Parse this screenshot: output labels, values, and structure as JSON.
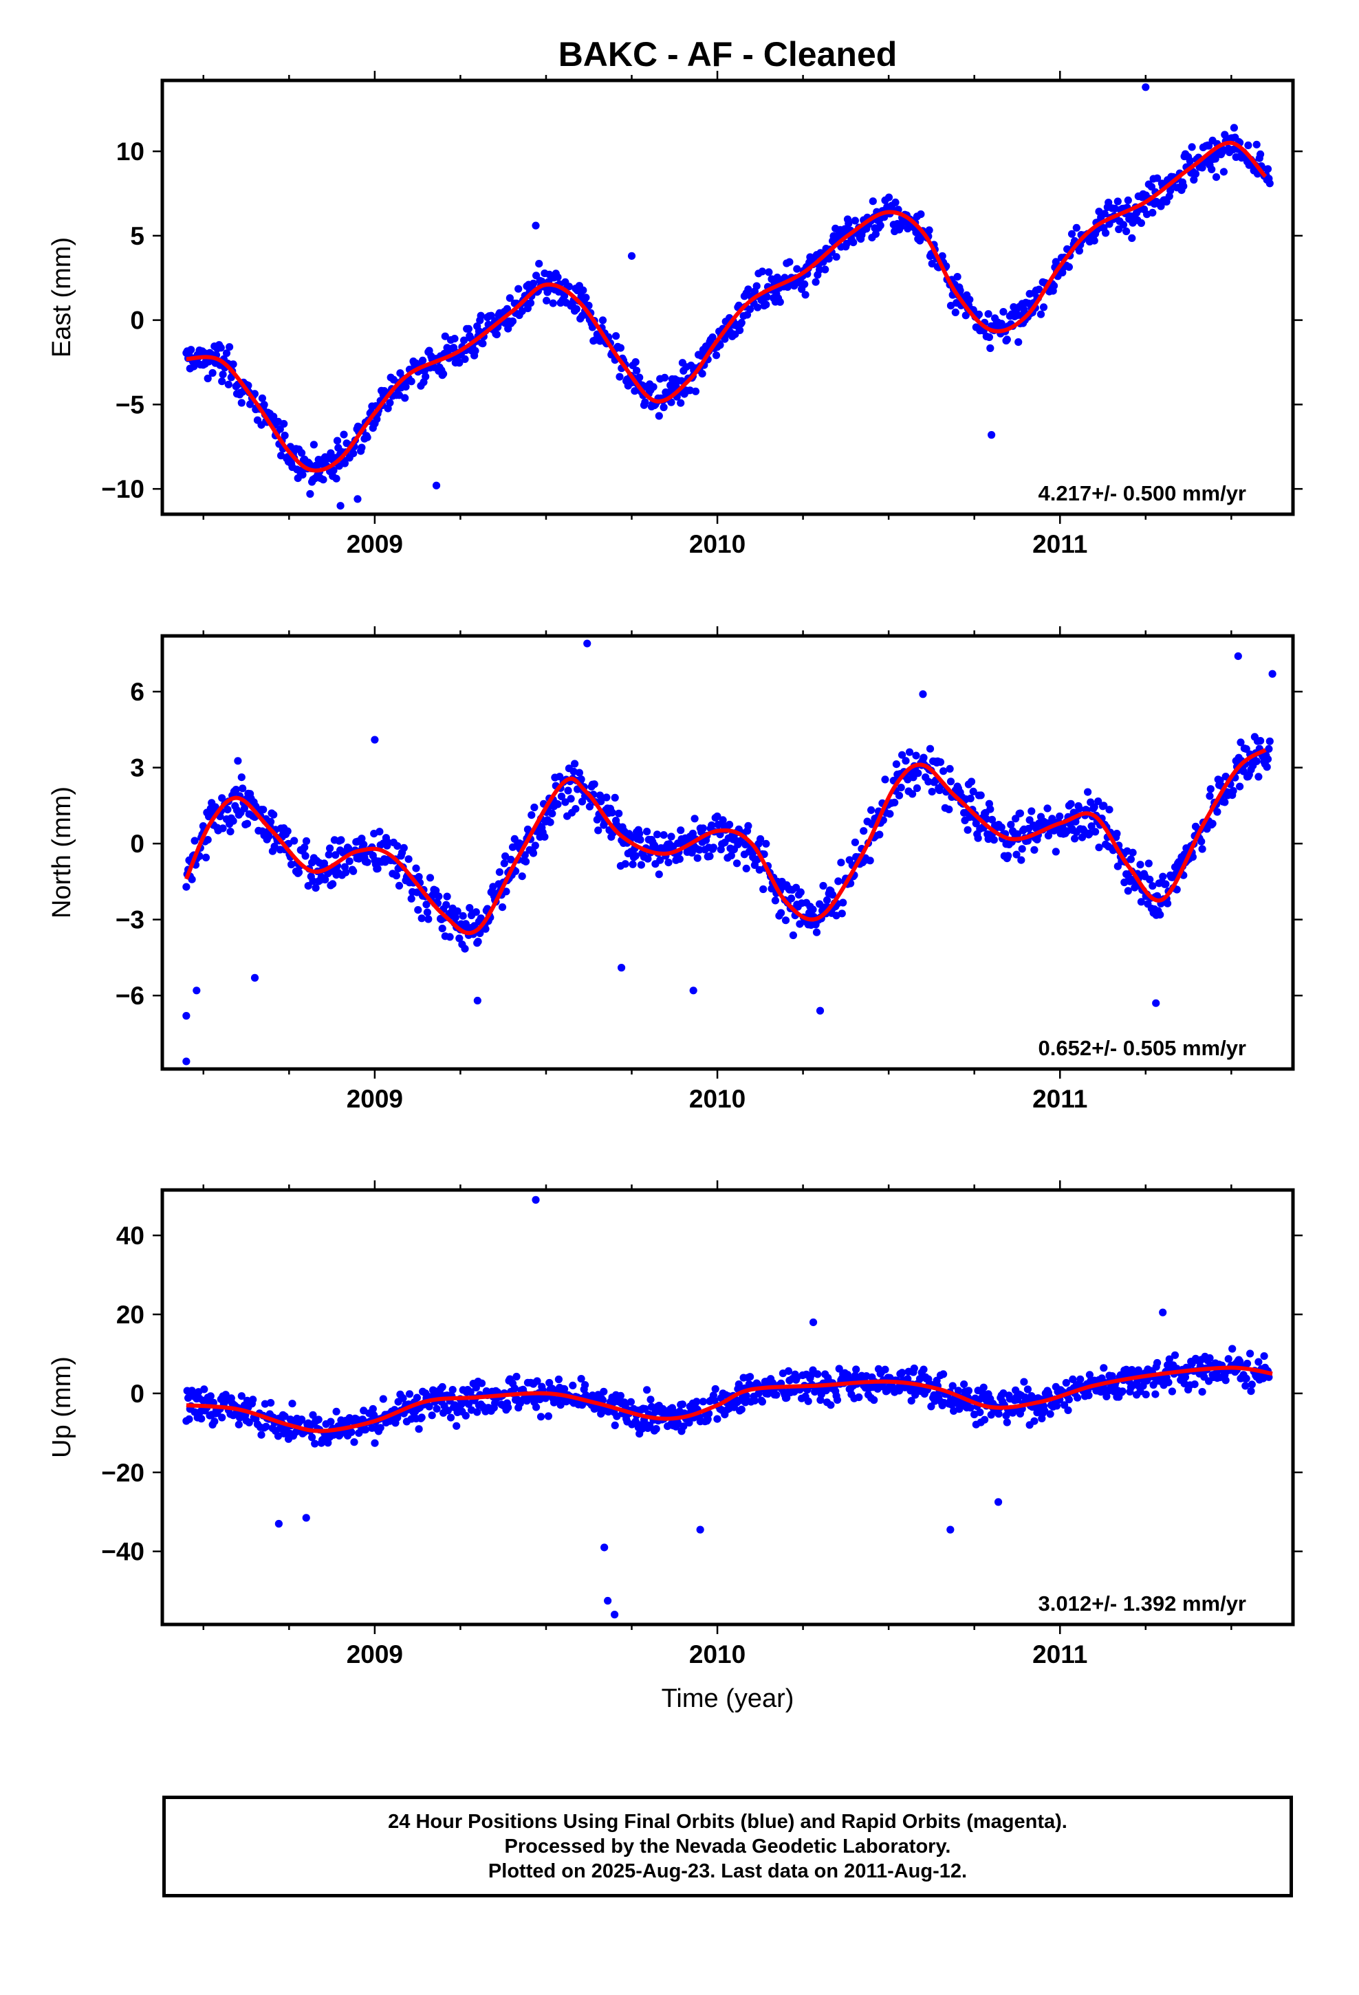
{
  "title": "BAKC  - AF - Cleaned",
  "colors": {
    "points": "#0000ff",
    "fit": "#ff0000",
    "frame": "#000000"
  },
  "footer": {
    "line1": "24 Hour Positions Using Final Orbits (blue) and Rapid Orbits (magenta).",
    "line2": "Processed by the Nevada Geodetic Laboratory.",
    "line3": "Plotted on 2025-Aug-23. Last data on 2011-Aug-12."
  },
  "chart_data": [
    {
      "type": "scatter",
      "id": "east",
      "ylabel": "East (mm)",
      "xlabel": "",
      "xlim": [
        2008.38,
        2011.68
      ],
      "ylim": [
        -11.5,
        14.2
      ],
      "xticks": [
        2009,
        2010,
        2011
      ],
      "xtick_labels": [
        "2009",
        "2010",
        "2011"
      ],
      "yticks": [
        -10,
        -5,
        0,
        5,
        10
      ],
      "ytick_labels": [
        "−10",
        "−5",
        "0",
        "5",
        "10"
      ],
      "rate_label": "4.217+/- 0.500 mm/yr",
      "noise": 1.4,
      "outliers": [
        [
          2008.9,
          -11.0
        ],
        [
          2008.95,
          -10.6
        ],
        [
          2009.18,
          -9.8
        ],
        [
          2009.47,
          5.6
        ],
        [
          2009.75,
          3.8
        ],
        [
          2010.8,
          -6.8
        ],
        [
          2011.25,
          13.8
        ]
      ],
      "fit_x": [
        2008.45,
        2008.55,
        2008.65,
        2008.75,
        2008.82,
        2008.9,
        2009.0,
        2009.1,
        2009.25,
        2009.4,
        2009.5,
        2009.6,
        2009.72,
        2009.82,
        2009.92,
        2010.0,
        2010.1,
        2010.25,
        2010.38,
        2010.5,
        2010.6,
        2010.7,
        2010.8,
        2010.9,
        2011.0,
        2011.1,
        2011.25,
        2011.38,
        2011.5,
        2011.6
      ],
      "fit_y": [
        -2.3,
        -2.4,
        -4.8,
        -7.8,
        -8.9,
        -8.2,
        -5.5,
        -3.2,
        -1.8,
        0.5,
        2.1,
        1.0,
        -2.5,
        -4.8,
        -3.5,
        -1.2,
        1.2,
        2.8,
        5.0,
        6.4,
        5.2,
        1.5,
        -0.6,
        0.2,
        3.2,
        5.5,
        7.0,
        9.0,
        10.5,
        8.5
      ]
    },
    {
      "type": "scatter",
      "id": "north",
      "ylabel": "North (mm)",
      "xlabel": "",
      "xlim": [
        2008.38,
        2011.68
      ],
      "ylim": [
        -8.9,
        8.2
      ],
      "xticks": [
        2009,
        2010,
        2011
      ],
      "xtick_labels": [
        "2009",
        "2010",
        "2011"
      ],
      "yticks": [
        -6,
        -3,
        0,
        3,
        6
      ],
      "ytick_labels": [
        "−6",
        "−3",
        "0",
        "3",
        "6"
      ],
      "rate_label": "0.652+/- 0.505 mm/yr",
      "noise": 1.2,
      "outliers": [
        [
          2008.45,
          -8.6
        ],
        [
          2008.45,
          -6.8
        ],
        [
          2008.48,
          -5.8
        ],
        [
          2008.65,
          -5.3
        ],
        [
          2009.0,
          4.1
        ],
        [
          2009.3,
          -6.2
        ],
        [
          2009.62,
          7.9
        ],
        [
          2009.72,
          -4.9
        ],
        [
          2009.93,
          -5.8
        ],
        [
          2010.3,
          -6.6
        ],
        [
          2010.6,
          5.9
        ],
        [
          2011.28,
          -6.3
        ],
        [
          2011.52,
          7.4
        ],
        [
          2011.62,
          6.7
        ]
      ],
      "fit_x": [
        2008.45,
        2008.52,
        2008.6,
        2008.7,
        2008.82,
        2008.95,
        2009.05,
        2009.2,
        2009.3,
        2009.42,
        2009.55,
        2009.62,
        2009.72,
        2009.85,
        2010.0,
        2010.1,
        2010.2,
        2010.3,
        2010.42,
        2010.52,
        2010.6,
        2010.7,
        2010.85,
        2011.0,
        2011.1,
        2011.2,
        2011.3,
        2011.42,
        2011.52,
        2011.6
      ],
      "fit_y": [
        -1.4,
        0.8,
        1.8,
        0.5,
        -1.1,
        -0.3,
        -0.5,
        -2.8,
        -3.4,
        -0.5,
        2.4,
        2.0,
        0.3,
        -0.4,
        0.5,
        0.0,
        -2.3,
        -2.9,
        -0.5,
        2.3,
        3.1,
        1.8,
        0.2,
        0.8,
        1.1,
        -0.9,
        -2.2,
        0.8,
        3.0,
        3.7
      ]
    },
    {
      "type": "scatter",
      "id": "up",
      "ylabel": "Up (mm)",
      "xlabel": "Time (year)",
      "xlim": [
        2008.38,
        2011.68
      ],
      "ylim": [
        -58.5,
        51.5
      ],
      "xticks": [
        2009,
        2010,
        2011
      ],
      "xtick_labels": [
        "2009",
        "2010",
        "2011"
      ],
      "yticks": [
        -40,
        -20,
        0,
        20,
        40
      ],
      "ytick_labels": [
        "−40",
        "−20",
        "0",
        "20",
        "40"
      ],
      "rate_label": "3.012+/- 1.392 mm/yr",
      "noise": 5.5,
      "outliers": [
        [
          2009.47,
          49.0
        ],
        [
          2009.67,
          -39.0
        ],
        [
          2009.68,
          -52.5
        ],
        [
          2009.7,
          -56.0
        ],
        [
          2009.95,
          -34.5
        ],
        [
          2008.72,
          -33.0
        ],
        [
          2008.8,
          -31.5
        ],
        [
          2010.68,
          -34.5
        ],
        [
          2010.82,
          -27.5
        ],
        [
          2010.28,
          18.0
        ],
        [
          2011.3,
          20.5
        ]
      ],
      "fit_x": [
        2008.45,
        2008.6,
        2008.75,
        2008.85,
        2009.0,
        2009.15,
        2009.3,
        2009.5,
        2009.65,
        2009.8,
        2009.9,
        2010.0,
        2010.1,
        2010.3,
        2010.5,
        2010.65,
        2010.8,
        2010.95,
        2011.1,
        2011.3,
        2011.5,
        2011.62
      ],
      "fit_y": [
        -3,
        -4,
        -8,
        -9.5,
        -7,
        -2,
        -1,
        0,
        -2.5,
        -6,
        -6,
        -3,
        1,
        2,
        3,
        1,
        -3.5,
        -2,
        2,
        5,
        6.5,
        5
      ]
    }
  ]
}
